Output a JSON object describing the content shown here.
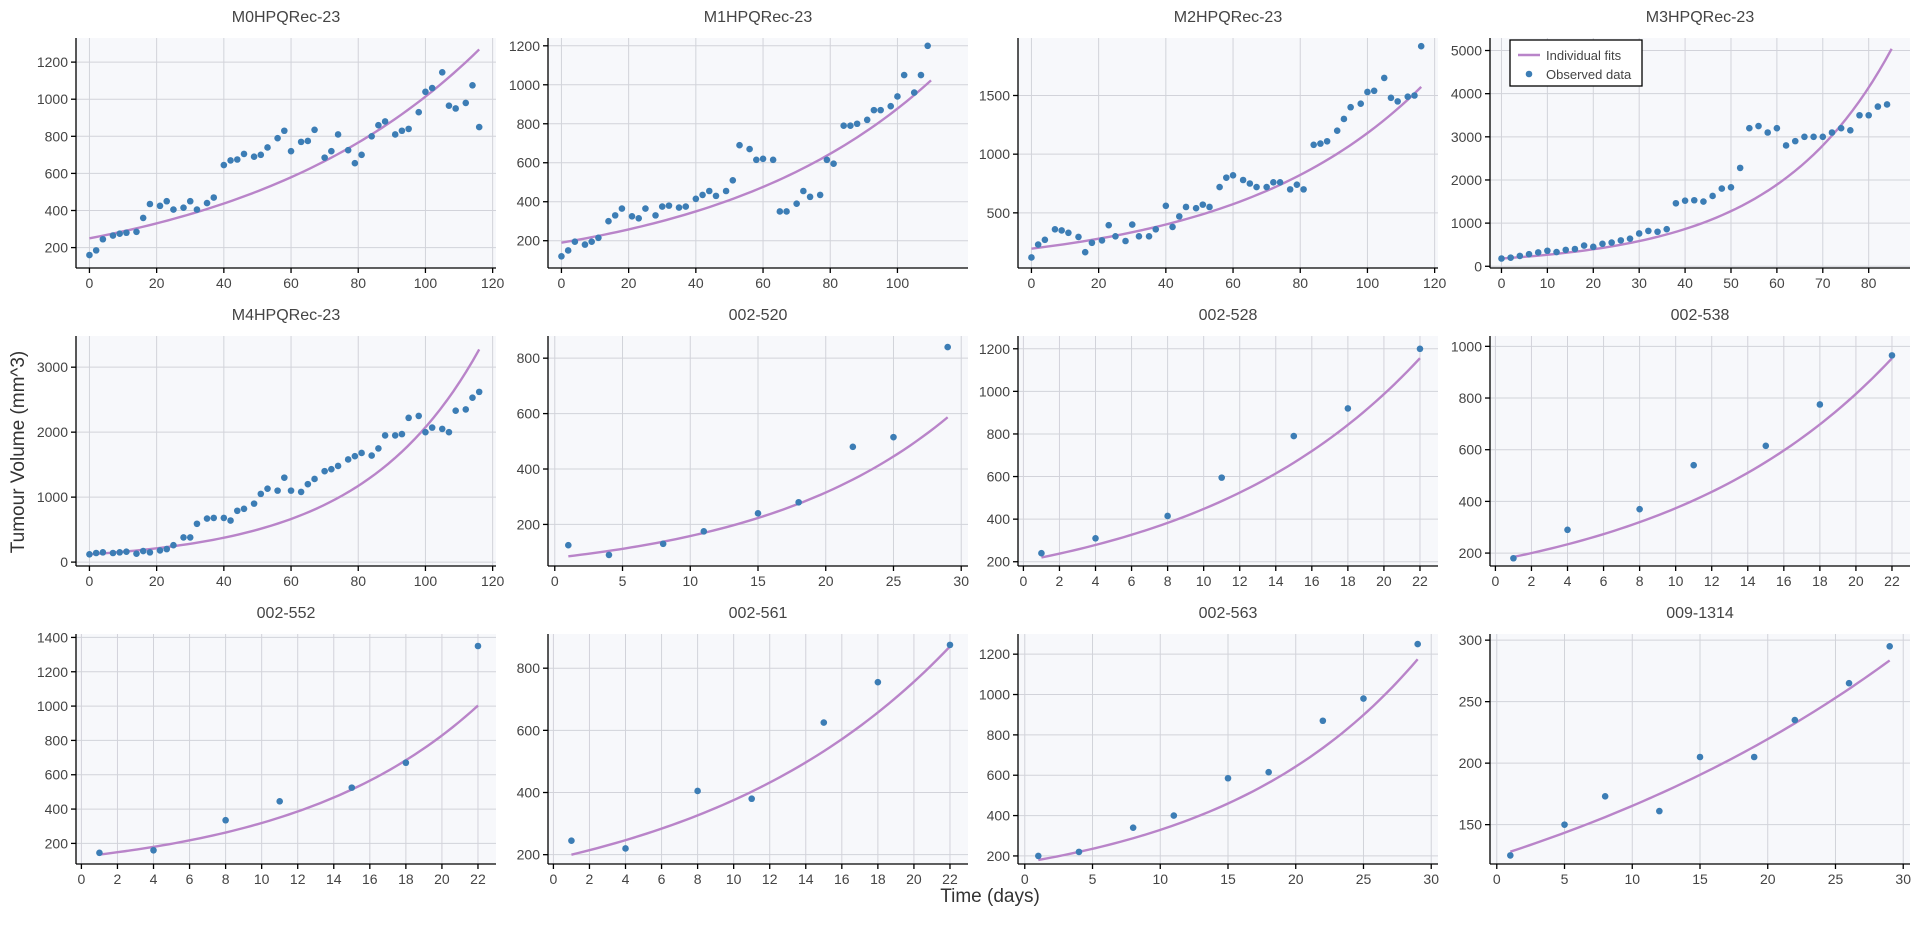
{
  "chart_data": {
    "type": "scatter",
    "ylabel": "Tumour Volume (mm^3)",
    "xlabel": "Time (days)",
    "colors": {
      "fit": "#b984c9",
      "observed": "#3c7db5"
    },
    "legend": {
      "position": "top-left",
      "panel": 3,
      "entries": [
        "Individual fits",
        "Observed data"
      ]
    },
    "panels": [
      {
        "title": "M0HPQRec-23",
        "xlim": [
          -4,
          121
        ],
        "ylim": [
          90,
          1330
        ],
        "xticks": [
          0,
          20,
          40,
          60,
          80,
          100,
          120
        ],
        "yticks": [
          200,
          400,
          600,
          800,
          1000,
          1200
        ],
        "x": [
          0,
          2,
          4,
          7,
          9,
          11,
          14,
          16,
          18,
          21,
          23,
          25,
          28,
          30,
          32,
          35,
          37,
          40,
          42,
          44,
          46,
          49,
          51,
          53,
          56,
          58,
          60,
          63,
          65,
          67,
          70,
          72,
          74,
          77,
          79,
          81,
          84,
          86,
          88,
          91,
          93,
          95,
          98,
          100,
          102,
          105,
          107,
          109,
          112,
          114,
          116
        ],
        "y": [
          160,
          185,
          245,
          265,
          275,
          280,
          285,
          360,
          435,
          425,
          450,
          405,
          415,
          450,
          405,
          440,
          470,
          645,
          670,
          675,
          705,
          690,
          700,
          740,
          790,
          830,
          720,
          770,
          775,
          835,
          685,
          720,
          810,
          725,
          655,
          700,
          800,
          860,
          880,
          810,
          830,
          840,
          930,
          1040,
          1060,
          1145,
          965,
          950,
          980,
          1075,
          850
        ],
        "fit": {
          "a": 250,
          "b": 0.014,
          "x0": 0,
          "x1": 116
        }
      },
      {
        "title": "M1HPQRec-23",
        "xlim": [
          -4,
          121
        ],
        "ylim": [
          60,
          1240
        ],
        "xticks": [
          0,
          20,
          40,
          60,
          80,
          100
        ],
        "yticks": [
          200,
          400,
          600,
          800,
          1000,
          1200
        ],
        "x": [
          0,
          2,
          4,
          7,
          9,
          11,
          14,
          16,
          18,
          21,
          23,
          25,
          28,
          30,
          32,
          35,
          37,
          40,
          42,
          44,
          46,
          49,
          51,
          53,
          56,
          58,
          60,
          63,
          65,
          67,
          70,
          72,
          74,
          77,
          79,
          81,
          84,
          86,
          88,
          91,
          93,
          95,
          98,
          100,
          102,
          105,
          107,
          109
        ],
        "y": [
          120,
          150,
          195,
          180,
          195,
          215,
          300,
          330,
          365,
          325,
          315,
          365,
          330,
          375,
          380,
          370,
          375,
          415,
          435,
          455,
          430,
          455,
          510,
          690,
          670,
          615,
          620,
          615,
          350,
          350,
          390,
          455,
          425,
          435,
          615,
          595,
          790,
          790,
          800,
          820,
          870,
          870,
          890,
          940,
          1050,
          960,
          1050,
          1200
        ],
        "fit": {
          "a": 190,
          "b": 0.0153,
          "x0": 0,
          "x1": 110
        }
      },
      {
        "title": "M2HPQRec-23",
        "xlim": [
          -4,
          121
        ],
        "ylim": [
          30,
          1990
        ],
        "xticks": [
          0,
          20,
          40,
          60,
          80,
          100,
          120
        ],
        "yticks": [
          500,
          1000,
          1500
        ],
        "x": [
          0,
          2,
          4,
          7,
          9,
          11,
          14,
          16,
          18,
          21,
          23,
          25,
          28,
          30,
          32,
          35,
          37,
          40,
          42,
          44,
          46,
          49,
          51,
          53,
          56,
          58,
          60,
          63,
          65,
          67,
          70,
          72,
          74,
          77,
          79,
          81,
          84,
          86,
          88,
          91,
          93,
          95,
          98,
          100,
          102,
          105,
          107,
          109,
          112,
          114,
          116
        ],
        "y": [
          120,
          230,
          270,
          360,
          350,
          330,
          295,
          165,
          245,
          265,
          395,
          300,
          260,
          400,
          300,
          300,
          360,
          560,
          380,
          470,
          550,
          540,
          570,
          550,
          720,
          800,
          820,
          780,
          750,
          720,
          720,
          760,
          760,
          700,
          740,
          700,
          1080,
          1090,
          1110,
          1200,
          1300,
          1400,
          1430,
          1530,
          1540,
          1650,
          1480,
          1450,
          1490,
          1500,
          1920
        ],
        "fit": {
          "a": 195,
          "b": 0.018,
          "x0": 0,
          "x1": 116
        }
      },
      {
        "title": "M3HPQRec-23",
        "xlim": [
          -2.5,
          89
        ],
        "ylim": [
          -40,
          5290
        ],
        "xticks": [
          0,
          10,
          20,
          30,
          40,
          50,
          60,
          70,
          80
        ],
        "yticks": [
          0,
          1000,
          2000,
          3000,
          4000,
          5000
        ],
        "x": [
          0,
          2,
          4,
          6,
          8,
          10,
          12,
          14,
          16,
          18,
          20,
          22,
          24,
          26,
          28,
          30,
          32,
          34,
          36,
          38,
          40,
          42,
          44,
          46,
          48,
          50,
          52,
          54,
          56,
          58,
          60,
          62,
          64,
          66,
          68,
          70,
          72,
          74,
          76,
          78,
          80,
          82,
          84
        ],
        "y": [
          180,
          200,
          240,
          280,
          320,
          360,
          330,
          380,
          400,
          480,
          450,
          520,
          550,
          600,
          640,
          760,
          820,
          800,
          860,
          1460,
          1520,
          1530,
          1500,
          1630,
          1800,
          1830,
          2280,
          3200,
          3250,
          3100,
          3200,
          2800,
          2900,
          3000,
          3000,
          3000,
          3100,
          3200,
          3150,
          3500,
          3500,
          3700,
          3750
        ],
        "fit": {
          "a": 180,
          "b": 0.0392,
          "x0": 0,
          "x1": 85
        }
      },
      {
        "title": "M4HPQRec-23",
        "xlim": [
          -4,
          121
        ],
        "ylim": [
          -60,
          3480
        ],
        "xticks": [
          0,
          20,
          40,
          60,
          80,
          100,
          120
        ],
        "yticks": [
          0,
          1000,
          2000,
          3000
        ],
        "x": [
          0,
          2,
          4,
          7,
          9,
          11,
          14,
          16,
          18,
          21,
          23,
          25,
          28,
          30,
          32,
          35,
          37,
          40,
          42,
          44,
          46,
          49,
          51,
          53,
          56,
          58,
          60,
          63,
          65,
          67,
          70,
          72,
          74,
          77,
          79,
          81,
          84,
          86,
          88,
          91,
          93,
          95,
          98,
          100,
          102,
          105,
          107,
          109,
          112,
          114,
          116
        ],
        "y": [
          120,
          140,
          150,
          140,
          150,
          160,
          130,
          170,
          150,
          180,
          200,
          260,
          380,
          380,
          590,
          670,
          680,
          680,
          640,
          790,
          820,
          900,
          1050,
          1130,
          1100,
          1300,
          1100,
          1080,
          1200,
          1280,
          1400,
          1430,
          1480,
          1580,
          1630,
          1680,
          1640,
          1750,
          1950,
          1950,
          1970,
          2220,
          2250,
          2000,
          2070,
          2050,
          2000,
          2330,
          2350,
          2530,
          2620
        ],
        "fit": {
          "a": 120,
          "b": 0.0285,
          "x0": 0,
          "x1": 116
        }
      },
      {
        "title": "002-520",
        "xlim": [
          -0.5,
          30.5
        ],
        "ylim": [
          50,
          880
        ],
        "xticks": [
          0,
          5,
          10,
          15,
          20,
          25,
          30
        ],
        "yticks": [
          200,
          400,
          600,
          800
        ],
        "x": [
          1,
          4,
          8,
          11,
          15,
          18,
          22,
          25,
          29
        ],
        "y": [
          125,
          90,
          130,
          175,
          240,
          280,
          480,
          515,
          840
        ],
        "fit": {
          "a": 85,
          "b": 0.069,
          "x0": 1,
          "x1": 29
        }
      },
      {
        "title": "002-528",
        "xlim": [
          -0.3,
          23
        ],
        "ylim": [
          180,
          1260
        ],
        "xticks": [
          0,
          2,
          4,
          6,
          8,
          10,
          12,
          14,
          16,
          18,
          20,
          22
        ],
        "yticks": [
          200,
          400,
          600,
          800,
          1000,
          1200
        ],
        "x": [
          1,
          4,
          8,
          11,
          15,
          18,
          22
        ],
        "y": [
          240,
          310,
          415,
          595,
          790,
          920,
          1200
        ],
        "fit": {
          "a": 220,
          "b": 0.079,
          "x0": 1,
          "x1": 22
        }
      },
      {
        "title": "002-538",
        "xlim": [
          -0.3,
          23
        ],
        "ylim": [
          150,
          1040
        ],
        "xticks": [
          0,
          2,
          4,
          6,
          8,
          10,
          12,
          14,
          16,
          18,
          20,
          22
        ],
        "yticks": [
          200,
          400,
          600,
          800,
          1000
        ],
        "x": [
          1,
          4,
          8,
          11,
          15,
          18,
          22
        ],
        "y": [
          180,
          290,
          370,
          540,
          615,
          775,
          965
        ],
        "fit": {
          "a": 185,
          "b": 0.0781,
          "x0": 1,
          "x1": 22
        }
      },
      {
        "title": "002-552",
        "xlim": [
          -0.3,
          23
        ],
        "ylim": [
          80,
          1420
        ],
        "xticks": [
          0,
          2,
          4,
          6,
          8,
          10,
          12,
          14,
          16,
          18,
          20,
          22
        ],
        "yticks": [
          200,
          400,
          600,
          800,
          1000,
          1200,
          1400
        ],
        "x": [
          1,
          4,
          8,
          11,
          15,
          18,
          22
        ],
        "y": [
          145,
          160,
          335,
          445,
          525,
          670,
          1350
        ],
        "fit": {
          "a": 135,
          "b": 0.0955,
          "x0": 1,
          "x1": 22
        }
      },
      {
        "title": "002-561",
        "xlim": [
          -0.3,
          23
        ],
        "ylim": [
          170,
          910
        ],
        "xticks": [
          0,
          2,
          4,
          6,
          8,
          10,
          12,
          14,
          16,
          18,
          20,
          22
        ],
        "yticks": [
          200,
          400,
          600,
          800
        ],
        "x": [
          1,
          4,
          8,
          11,
          15,
          18,
          22
        ],
        "y": [
          245,
          220,
          405,
          380,
          625,
          755,
          875
        ],
        "fit": {
          "a": 200,
          "b": 0.07,
          "x0": 1,
          "x1": 22
        }
      },
      {
        "title": "002-563",
        "xlim": [
          -0.5,
          30.5
        ],
        "ylim": [
          160,
          1300
        ],
        "xticks": [
          0,
          5,
          10,
          15,
          20,
          25,
          30
        ],
        "yticks": [
          200,
          400,
          600,
          800,
          1000,
          1200
        ],
        "x": [
          1,
          4,
          8,
          11,
          15,
          18,
          22,
          25,
          29
        ],
        "y": [
          200,
          220,
          340,
          400,
          585,
          615,
          870,
          980,
          1250
        ],
        "fit": {
          "a": 180,
          "b": 0.067,
          "x0": 1,
          "x1": 29
        }
      },
      {
        "title": "009-1314",
        "xlim": [
          -0.5,
          30.5
        ],
        "ylim": [
          118,
          305
        ],
        "xticks": [
          0,
          5,
          10,
          15,
          20,
          25,
          30
        ],
        "yticks": [
          150,
          200,
          250,
          300
        ],
        "x": [
          1,
          5,
          8,
          12,
          15,
          19,
          22,
          26,
          29
        ],
        "y": [
          125,
          150,
          173,
          161,
          205,
          205,
          235,
          265,
          295
        ],
        "fit": {
          "a": 128,
          "b": 0.0284,
          "x0": 1,
          "x1": 29
        }
      }
    ]
  }
}
